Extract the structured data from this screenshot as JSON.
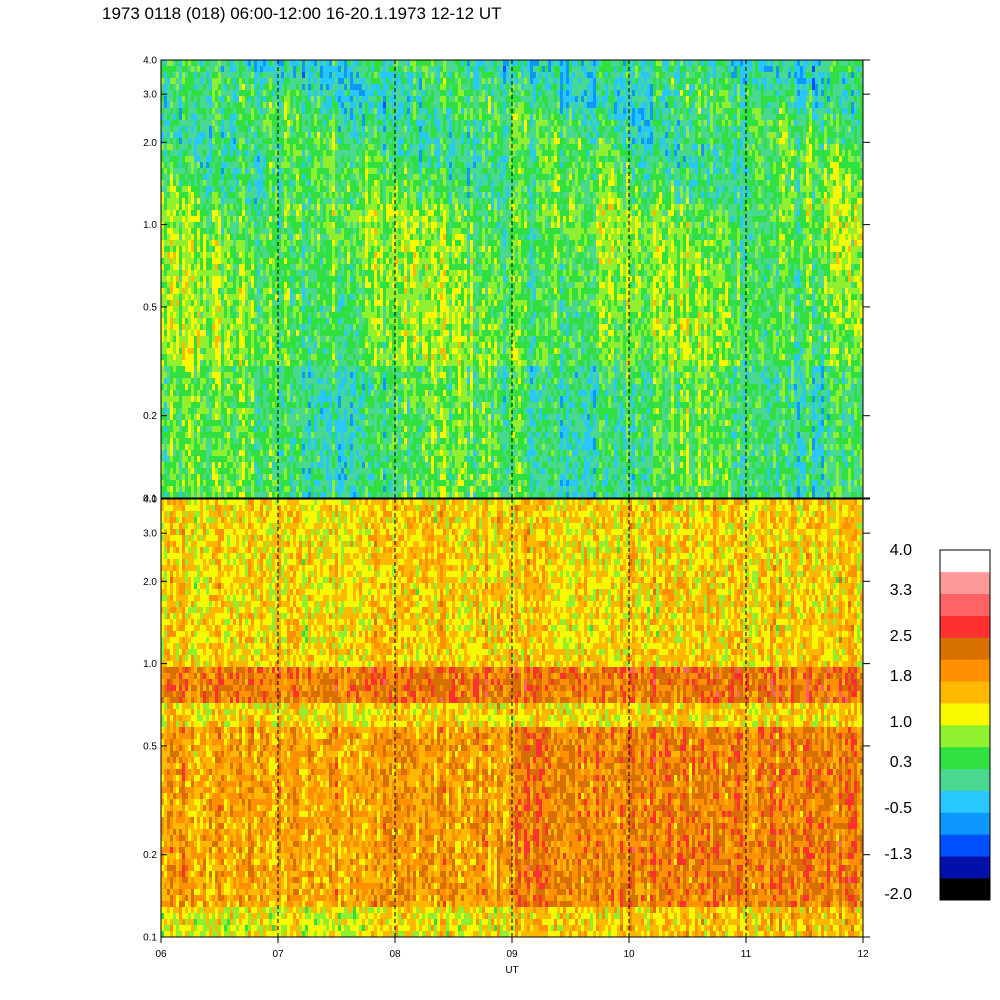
{
  "title": "1973 0118 (018) 06:00-12:00 16-20.1.1973  12-12 UT",
  "chart_data": [
    {
      "type": "heatmap",
      "panel": "top",
      "xlabel": "",
      "ylabel": "",
      "xlim": [
        6,
        12
      ],
      "ylim": [
        0.1,
        4.0
      ],
      "yscale": "log",
      "ytick_labels": [
        "0.1",
        "0.2",
        "0.5",
        "1.0",
        "2.0",
        "3.0",
        "4.0"
      ],
      "yticks": [
        0.1,
        0.2,
        0.5,
        1.0,
        2.0,
        3.0,
        4.0
      ],
      "vertical_dashed_lines_at": [
        7,
        8,
        9,
        10,
        11
      ],
      "dominant_levels": {
        "low_frequencies": 0.3,
        "mid_frequencies": 0.6,
        "high_frequencies": 0.0
      }
    },
    {
      "type": "heatmap",
      "panel": "bottom",
      "xlabel": "UT",
      "ylabel": "",
      "xlim": [
        6,
        12
      ],
      "ylim": [
        0.1,
        4.0
      ],
      "yscale": "log",
      "ytick_labels": [
        "0.1",
        "0.2",
        "0.5",
        "1.0",
        "2.0",
        "3.0",
        "4.0"
      ],
      "yticks": [
        0.1,
        0.2,
        0.5,
        1.0,
        2.0,
        3.0,
        4.0
      ],
      "xtick_labels": [
        "06",
        "07",
        "08",
        "09",
        "10",
        "11",
        "12"
      ],
      "xticks": [
        6,
        7,
        8,
        9,
        10,
        11,
        12
      ],
      "vertical_dashed_lines_at": [
        7,
        8,
        9,
        10,
        11
      ],
      "band": {
        "ymin": 0.72,
        "ymax": 0.95,
        "level": 2.2
      },
      "dominant_levels": {
        "low_frequencies": 1.8,
        "high_frequencies": 1.4
      }
    }
  ],
  "colorbar": {
    "tick_labels": [
      "4.0",
      "3.3",
      "2.5",
      "1.8",
      "1.0",
      "0.3",
      "-0.5",
      "-1.3",
      "-2.0"
    ],
    "colors": [
      "#000000",
      "#0010a8",
      "#0050ff",
      "#0c98ff",
      "#28c8ff",
      "#48d890",
      "#30e040",
      "#90f030",
      "#f8f800",
      "#ffb800",
      "#ff9000",
      "#d87000",
      "#ff3030",
      "#ff6464",
      "#ff9898",
      "#ffffff"
    ],
    "range": [
      -2.0,
      4.0
    ]
  }
}
